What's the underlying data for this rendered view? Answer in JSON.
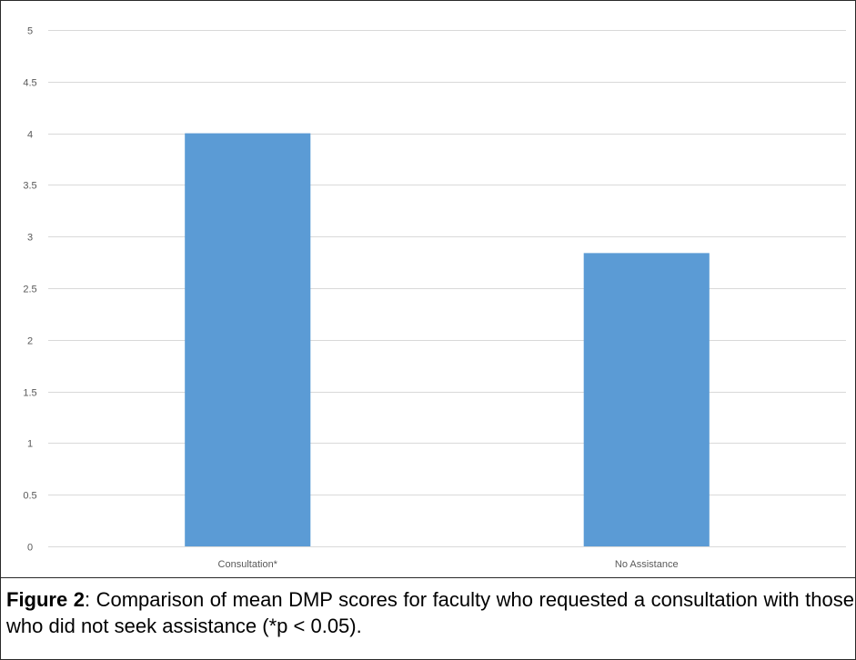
{
  "chart_data": {
    "type": "bar",
    "categories": [
      "Consultation*",
      "No Assistance"
    ],
    "values": [
      4.0,
      2.84
    ],
    "title": "",
    "xlabel": "",
    "ylabel": "",
    "ylim": [
      0,
      5
    ],
    "yticks": [
      0,
      0.5,
      1,
      1.5,
      2,
      2.5,
      3,
      3.5,
      4,
      4.5,
      5
    ],
    "grid": true,
    "legend": "none",
    "bar_color": "#5b9bd5",
    "grid_color": "#d9d9d9"
  },
  "caption": {
    "label": "Figure 2",
    "text": ": Comparison of mean DMP scores for faculty who requested a consultation with those who did not seek assistance (*p < 0.05)."
  }
}
